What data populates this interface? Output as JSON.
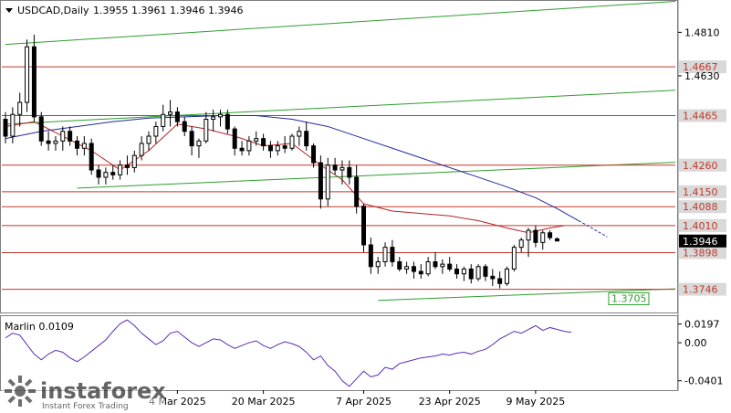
{
  "header": {
    "symbol_timeframe": "USDCAD,Daily",
    "ohlc": "1.3955 1.3961 1.3946 1.3946"
  },
  "chart_data": [
    {
      "type": "candlestick",
      "title": "USDCAD,Daily",
      "price_axis": {
        "ylim": [
          1.365,
          1.494
        ],
        "ticks": [
          {
            "label": "1.4810",
            "value": 1.481
          },
          {
            "label": "1.4630",
            "value": 1.463
          }
        ]
      },
      "horizontal_levels": [
        {
          "label": "1.4667",
          "value": 1.4667
        },
        {
          "label": "1.4465",
          "value": 1.4465
        },
        {
          "label": "1.4260",
          "value": 1.426
        },
        {
          "label": "1.4150",
          "value": 1.415
        },
        {
          "label": "1.4088",
          "value": 1.4088
        },
        {
          "label": "1.4010",
          "value": 1.401
        },
        {
          "label": "1.3898",
          "value": 1.3898
        },
        {
          "label": "1.3746",
          "value": 1.3746
        }
      ],
      "current_price": {
        "label": "1.3946",
        "value": 1.3946
      },
      "trendline_label": {
        "label": "1.3705",
        "value": 1.3705
      },
      "channel_lines": [
        {
          "from": [
            0,
            1.476
          ],
          "to": [
            96,
            1.4938
          ]
        },
        {
          "from": [
            0,
            1.443
          ],
          "to": [
            96,
            1.457
          ]
        },
        {
          "from": [
            10,
            1.4165
          ],
          "to": [
            96,
            1.4272
          ]
        },
        {
          "from": [
            52,
            1.37
          ],
          "to": [
            96,
            1.3748
          ]
        }
      ],
      "x_axis": {
        "ticks": [
          {
            "label": "4 Mar 2025",
            "index": 24
          },
          {
            "label": "20 Mar 2025",
            "index": 36
          },
          {
            "label": "7 Apr 2025",
            "index": 50
          },
          {
            "label": "23 Apr 2025",
            "index": 62
          },
          {
            "label": "9 May 2025",
            "index": 74
          }
        ]
      },
      "candles": [
        [
          1.445,
          1.448,
          1.435,
          1.438
        ],
        [
          1.438,
          1.45,
          1.435,
          1.447
        ],
        [
          1.447,
          1.456,
          1.442,
          1.452
        ],
        [
          1.452,
          1.478,
          1.448,
          1.475
        ],
        [
          1.475,
          1.48,
          1.444,
          1.446
        ],
        [
          1.446,
          1.448,
          1.434,
          1.436
        ],
        [
          1.436,
          1.44,
          1.432,
          1.435
        ],
        [
          1.435,
          1.438,
          1.432,
          1.436
        ],
        [
          1.436,
          1.442,
          1.432,
          1.44
        ],
        [
          1.44,
          1.442,
          1.434,
          1.436
        ],
        [
          1.436,
          1.438,
          1.43,
          1.433
        ],
        [
          1.433,
          1.438,
          1.43,
          1.435
        ],
        [
          1.435,
          1.437,
          1.422,
          1.424
        ],
        [
          1.424,
          1.426,
          1.418,
          1.421
        ],
        [
          1.421,
          1.425,
          1.418,
          1.423
        ],
        [
          1.423,
          1.426,
          1.42,
          1.422
        ],
        [
          1.422,
          1.428,
          1.42,
          1.426
        ],
        [
          1.426,
          1.43,
          1.422,
          1.425
        ],
        [
          1.425,
          1.432,
          1.423,
          1.43
        ],
        [
          1.43,
          1.438,
          1.428,
          1.435
        ],
        [
          1.435,
          1.44,
          1.432,
          1.438
        ],
        [
          1.438,
          1.444,
          1.435,
          1.442
        ],
        [
          1.442,
          1.451,
          1.44,
          1.447
        ],
        [
          1.447,
          1.453,
          1.442,
          1.448
        ],
        [
          1.448,
          1.45,
          1.442,
          1.444
        ],
        [
          1.444,
          1.446,
          1.438,
          1.44
        ],
        [
          1.44,
          1.442,
          1.43,
          1.434
        ],
        [
          1.434,
          1.437,
          1.429,
          1.436
        ],
        [
          1.436,
          1.448,
          1.435,
          1.445
        ],
        [
          1.445,
          1.449,
          1.44,
          1.446
        ],
        [
          1.446,
          1.449,
          1.442,
          1.447
        ],
        [
          1.447,
          1.449,
          1.439,
          1.441
        ],
        [
          1.441,
          1.442,
          1.43,
          1.433
        ],
        [
          1.433,
          1.436,
          1.43,
          1.432
        ],
        [
          1.432,
          1.438,
          1.43,
          1.436
        ],
        [
          1.436,
          1.44,
          1.434,
          1.437
        ],
        [
          1.437,
          1.439,
          1.432,
          1.434
        ],
        [
          1.434,
          1.436,
          1.429,
          1.432
        ],
        [
          1.432,
          1.436,
          1.43,
          1.434
        ],
        [
          1.434,
          1.438,
          1.431,
          1.433
        ],
        [
          1.433,
          1.439,
          1.432,
          1.438
        ],
        [
          1.438,
          1.442,
          1.434,
          1.44
        ],
        [
          1.44,
          1.444,
          1.432,
          1.434
        ],
        [
          1.434,
          1.435,
          1.425,
          1.427
        ],
        [
          1.427,
          1.43,
          1.408,
          1.412
        ],
        [
          1.412,
          1.429,
          1.409,
          1.426
        ],
        [
          1.426,
          1.429,
          1.422,
          1.424
        ],
        [
          1.424,
          1.428,
          1.418,
          1.425
        ],
        [
          1.425,
          1.428,
          1.418,
          1.421
        ],
        [
          1.421,
          1.426,
          1.406,
          1.409
        ],
        [
          1.409,
          1.41,
          1.39,
          1.393
        ],
        [
          1.393,
          1.396,
          1.381,
          1.384
        ],
        [
          1.384,
          1.388,
          1.381,
          1.386
        ],
        [
          1.386,
          1.394,
          1.384,
          1.392
        ],
        [
          1.392,
          1.395,
          1.384,
          1.386
        ],
        [
          1.386,
          1.388,
          1.382,
          1.383
        ],
        [
          1.383,
          1.386,
          1.381,
          1.384
        ],
        [
          1.384,
          1.386,
          1.379,
          1.382
        ],
        [
          1.382,
          1.385,
          1.379,
          1.381
        ],
        [
          1.381,
          1.388,
          1.38,
          1.386
        ],
        [
          1.386,
          1.39,
          1.383,
          1.384
        ],
        [
          1.384,
          1.387,
          1.381,
          1.385
        ],
        [
          1.385,
          1.388,
          1.382,
          1.383
        ],
        [
          1.383,
          1.385,
          1.379,
          1.381
        ],
        [
          1.381,
          1.384,
          1.378,
          1.383
        ],
        [
          1.383,
          1.385,
          1.377,
          1.379
        ],
        [
          1.379,
          1.385,
          1.378,
          1.384
        ],
        [
          1.384,
          1.385,
          1.378,
          1.38
        ],
        [
          1.38,
          1.383,
          1.376,
          1.379
        ],
        [
          1.379,
          1.382,
          1.375,
          1.377
        ],
        [
          1.377,
          1.384,
          1.376,
          1.383
        ],
        [
          1.383,
          1.393,
          1.382,
          1.392
        ],
        [
          1.392,
          1.396,
          1.39,
          1.395
        ],
        [
          1.395,
          1.4,
          1.388,
          1.399
        ],
        [
          1.399,
          1.401,
          1.392,
          1.394
        ],
        [
          1.394,
          1.399,
          1.391,
          1.398
        ],
        [
          1.398,
          1.399,
          1.395,
          1.396
        ],
        [
          1.3955,
          1.3961,
          1.3946,
          1.3946
        ]
      ],
      "moving_averages": [
        {
          "name": "",
          "color": "#1f2a9c",
          "dashed_extension": true,
          "points": [
            [
              0,
              1.437
            ],
            [
              5,
              1.44
            ],
            [
              10,
              1.442
            ],
            [
              15,
              1.444
            ],
            [
              20,
              1.4455
            ],
            [
              25,
              1.446
            ],
            [
              30,
              1.4465
            ],
            [
              35,
              1.4465
            ],
            [
              40,
              1.445
            ],
            [
              45,
              1.442
            ],
            [
              50,
              1.437
            ],
            [
              55,
              1.432
            ],
            [
              60,
              1.427
            ],
            [
              65,
              1.422
            ],
            [
              70,
              1.417
            ],
            [
              74,
              1.4125
            ],
            [
              77,
              1.408
            ],
            [
              80,
              1.403
            ]
          ]
        },
        {
          "name": "",
          "color": "#b22222",
          "points": [
            [
              0,
              1.442
            ],
            [
              4,
              1.444
            ],
            [
              8,
              1.438
            ],
            [
              12,
              1.432
            ],
            [
              16,
              1.424
            ],
            [
              20,
              1.432
            ],
            [
              24,
              1.443
            ],
            [
              28,
              1.441
            ],
            [
              32,
              1.438
            ],
            [
              36,
              1.434
            ],
            [
              40,
              1.435
            ],
            [
              44,
              1.426
            ],
            [
              47,
              1.42
            ],
            [
              50,
              1.41
            ],
            [
              54,
              1.407
            ],
            [
              58,
              1.406
            ],
            [
              62,
              1.405
            ],
            [
              66,
              1.403
            ],
            [
              70,
              1.4
            ],
            [
              73,
              1.398
            ],
            [
              76,
              1.4
            ],
            [
              78,
              1.401
            ]
          ]
        }
      ]
    },
    {
      "type": "line",
      "title": "Marlin 0.0109",
      "ylim": [
        -0.05,
        0.028
      ],
      "ticks": [
        {
          "label": "0.0197",
          "value": 0.0197
        },
        {
          "label": "0.00",
          "value": 0.0
        },
        {
          "label": "-0.0401",
          "value": -0.0401
        }
      ],
      "color": "#5b2db3",
      "values": [
        0.005,
        0.01,
        0.008,
        -0.002,
        -0.012,
        -0.018,
        -0.012,
        -0.008,
        -0.01,
        -0.016,
        -0.02,
        -0.015,
        -0.009,
        -0.003,
        0.003,
        0.012,
        0.02,
        0.024,
        0.018,
        0.01,
        0.004,
        -0.002,
        0.002,
        0.01,
        0.012,
        0.006,
        0.0,
        -0.004,
        0.0,
        0.004,
        0.003,
        -0.002,
        -0.006,
        -0.003,
        0.0,
        0.002,
        -0.003,
        -0.006,
        -0.002,
        0.001,
        -0.001,
        -0.004,
        -0.01,
        -0.018,
        -0.014,
        -0.024,
        -0.03,
        -0.04,
        -0.046,
        -0.038,
        -0.03,
        -0.036,
        -0.034,
        -0.026,
        -0.028,
        -0.022,
        -0.02,
        -0.018,
        -0.016,
        -0.015,
        -0.014,
        -0.012,
        -0.013,
        -0.011,
        -0.01,
        -0.012,
        -0.009,
        -0.007,
        -0.002,
        0.004,
        0.008,
        0.012,
        0.01,
        0.014,
        0.018,
        0.013,
        0.016,
        0.014,
        0.012,
        0.011
      ]
    }
  ],
  "watermark": {
    "brand": "instaforex",
    "tagline": "Instant Forex Trading"
  },
  "colors": {
    "level_line": "#c0392b",
    "channel_line": "#2e9e2e",
    "bull": "#ffffff",
    "bear": "#000000",
    "label_bg": "#d9d9d9",
    "level_label_text": "#c0392b",
    "price_label_bg": "#000000"
  }
}
